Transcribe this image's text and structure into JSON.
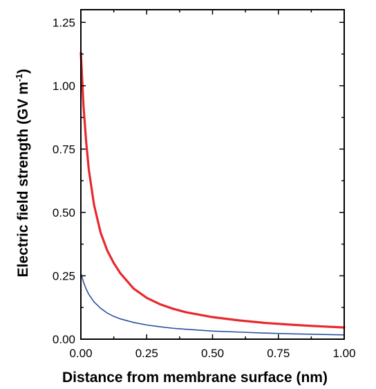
{
  "chart_data": {
    "type": "line",
    "title": "",
    "xlabel": "Distance from membrane surface  (nm)",
    "ylabel": {
      "prefix": "Electric field strength  (GV m",
      "superscript": "-1",
      "suffix": ")"
    },
    "xlim": [
      0,
      1.0
    ],
    "ylim": [
      0,
      1.3
    ],
    "x_ticks": [
      "0.00",
      "0.25",
      "0.50",
      "0.75",
      "1.00"
    ],
    "y_ticks": [
      "0.00",
      "0.25",
      "0.50",
      "0.75",
      "1.00",
      "1.25"
    ],
    "x_tick_values": [
      0,
      0.25,
      0.5,
      0.75,
      1.0
    ],
    "y_tick_values": [
      0,
      0.25,
      0.5,
      0.75,
      1.0,
      1.25
    ],
    "grid": false,
    "legend": "none",
    "series": [
      {
        "color": "#e8282c",
        "x": [
          0.0,
          0.01,
          0.02,
          0.03,
          0.05,
          0.075,
          0.1,
          0.125,
          0.15,
          0.2,
          0.25,
          0.3,
          0.35,
          0.4,
          0.5,
          0.6,
          0.7,
          0.8,
          0.9,
          1.0
        ],
        "y": [
          1.13,
          0.92,
          0.78,
          0.67,
          0.53,
          0.42,
          0.35,
          0.3,
          0.26,
          0.2,
          0.163,
          0.138,
          0.12,
          0.106,
          0.087,
          0.074,
          0.064,
          0.057,
          0.051,
          0.046
        ]
      },
      {
        "color": "#2a4f9e",
        "x": [
          0.0,
          0.01,
          0.02,
          0.03,
          0.05,
          0.075,
          0.1,
          0.125,
          0.15,
          0.2,
          0.25,
          0.3,
          0.35,
          0.4,
          0.5,
          0.6,
          0.7,
          0.8,
          0.9,
          1.0
        ],
        "y": [
          0.26,
          0.225,
          0.198,
          0.177,
          0.147,
          0.122,
          0.103,
          0.09,
          0.08,
          0.066,
          0.056,
          0.049,
          0.043,
          0.039,
          0.032,
          0.028,
          0.024,
          0.021,
          0.019,
          0.017
        ]
      }
    ]
  }
}
